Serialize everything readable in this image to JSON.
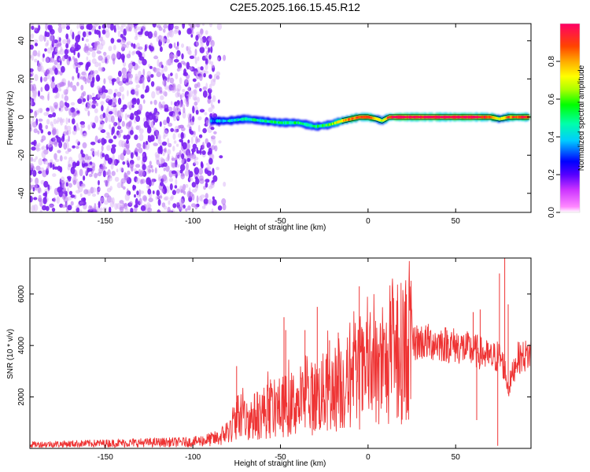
{
  "title": "C2E5.2025.166.15.45.R12",
  "colors": {
    "snr_line": "#ee3333",
    "noise": "#8844ee",
    "colorbar": [
      "#ff00ff",
      "#8800ff",
      "#0000ff",
      "#00ffff",
      "#00ff00",
      "#ffff00",
      "#ff8800",
      "#ff0000",
      "#ff0055"
    ]
  },
  "chart_data": [
    {
      "type": "heatmap",
      "xlabel": "Height of straight line (km)",
      "ylabel": "Frequency (Hz)",
      "xlim": [
        -193,
        93
      ],
      "ylim": [
        -50,
        49
      ],
      "xticks": [
        "-150",
        "-100",
        "-50",
        "0",
        "50"
      ],
      "yticks": [
        "40",
        "20",
        "0",
        "-20",
        "-40"
      ],
      "colorbar": {
        "label": "Normalized spectral amplitude",
        "range": [
          0.0,
          1.0
        ],
        "ticks": [
          "0.0",
          "0.2",
          "0.4",
          "0.6",
          "0.8"
        ]
      },
      "regions": [
        {
          "name": "broadband noise",
          "x_range": [
            -193,
            -88
          ],
          "freq_range": [
            -50,
            49
          ],
          "amplitude": 0.15
        },
        {
          "name": "signal track",
          "x_range": [
            -90,
            92
          ],
          "center_freq": 0,
          "amplitude_range": [
            0.3,
            1.0
          ]
        }
      ],
      "track": {
        "x": [
          -90,
          -80,
          -70,
          -60,
          -50,
          -40,
          -30,
          -22,
          -15,
          -10,
          -5,
          0,
          5,
          8,
          12,
          20,
          40,
          60,
          70,
          75,
          80,
          85,
          92
        ],
        "freq": [
          -2,
          -2,
          -1,
          -2,
          -3,
          -3,
          -5,
          -4,
          -2,
          -1,
          0,
          0,
          -1,
          -2,
          0,
          0,
          0,
          0,
          0,
          -1,
          0,
          0,
          0
        ],
        "amplitude": [
          0.35,
          0.4,
          0.45,
          0.45,
          0.5,
          0.5,
          0.5,
          0.6,
          0.75,
          0.85,
          0.9,
          0.95,
          0.7,
          0.65,
          0.95,
          1.0,
          1.0,
          1.0,
          0.9,
          0.7,
          0.85,
          0.9,
          0.95
        ]
      }
    },
    {
      "type": "line",
      "xlabel": "Height of straight line (km)",
      "ylabel": "SNR (10 * v/v)",
      "xlim": [
        -193,
        93
      ],
      "ylim": [
        0,
        7400
      ],
      "xticks": [
        "-150",
        "-100",
        "-50",
        "0",
        "50"
      ],
      "yticks": [
        "6000",
        "4000",
        "2000"
      ],
      "envelope": {
        "x": [
          -193,
          -150,
          -100,
          -85,
          -78,
          -75,
          -70,
          -60,
          -50,
          -40,
          -30,
          -20,
          -10,
          0,
          10,
          15,
          20,
          25,
          30,
          40,
          50,
          60,
          65,
          70,
          75,
          78,
          80,
          85,
          90,
          93
        ],
        "y": [
          150,
          200,
          250,
          400,
          800,
          1300,
          1100,
          1400,
          1600,
          1800,
          2000,
          2300,
          2600,
          2900,
          3100,
          3500,
          3800,
          4100,
          4150,
          4100,
          4000,
          3800,
          3700,
          3500,
          3600,
          3100,
          2300,
          3500,
          3600,
          3700
        ]
      },
      "spikes": [
        {
          "x": -75,
          "y": 3200
        },
        {
          "x": -48,
          "y": 5100
        },
        {
          "x": -47,
          "y": 4600
        },
        {
          "x": -36,
          "y": 4600
        },
        {
          "x": -29,
          "y": 5500
        },
        {
          "x": -22,
          "y": 4200
        },
        {
          "x": -17,
          "y": 4500
        },
        {
          "x": -5,
          "y": 6300
        },
        {
          "x": 13,
          "y": 4800
        },
        {
          "x": 60,
          "y": 5300
        },
        {
          "x": 64,
          "y": 5400
        },
        {
          "x": 75,
          "y": 6800
        },
        {
          "x": 78,
          "y": 7400
        },
        {
          "x": 80,
          "y": 5600
        },
        {
          "x": 74,
          "y": 100
        },
        {
          "x": 62,
          "y": 1100
        }
      ]
    }
  ]
}
